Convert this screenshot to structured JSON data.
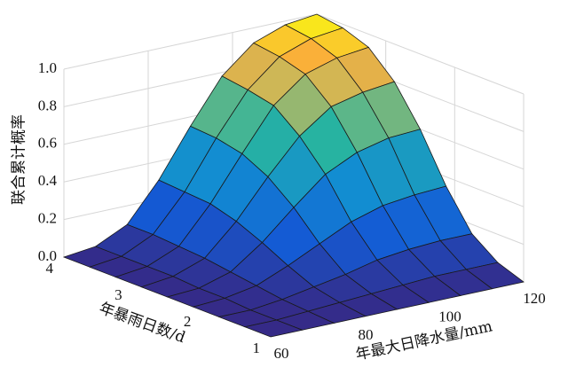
{
  "chart_data": {
    "type": "surface",
    "xlabel": "年最大日降水量/mm",
    "ylabel": "年暴雨日数/d",
    "zlabel": "联合累计概率",
    "x": [
      60,
      67.5,
      75,
      82.5,
      90,
      97.5,
      105,
      112.5,
      120
    ],
    "y": [
      1,
      1.375,
      1.75,
      2.125,
      2.5,
      2.875,
      3.25,
      3.625,
      4
    ],
    "z": [
      [
        0,
        0,
        0,
        0,
        0,
        0,
        0,
        0,
        0
      ],
      [
        0,
        0,
        0.01,
        0.02,
        0.03,
        0.04,
        0.05,
        0.05,
        0.05
      ],
      [
        0,
        0,
        0.02,
        0.05,
        0.08,
        0.12,
        0.14,
        0.15,
        0.15
      ],
      [
        0,
        0.01,
        0.04,
        0.11,
        0.19,
        0.27,
        0.32,
        0.34,
        0.35
      ],
      [
        0,
        0.01,
        0.06,
        0.18,
        0.33,
        0.47,
        0.55,
        0.59,
        0.6
      ],
      [
        0,
        0.02,
        0.08,
        0.24,
        0.44,
        0.62,
        0.74,
        0.78,
        0.8
      ],
      [
        0,
        0.02,
        0.09,
        0.28,
        0.51,
        0.73,
        0.86,
        0.91,
        0.93
      ],
      [
        0,
        0.02,
        0.1,
        0.29,
        0.54,
        0.76,
        0.9,
        0.96,
        0.98
      ],
      [
        0,
        0.02,
        0.1,
        0.3,
        0.55,
        0.78,
        0.92,
        0.98,
        1
      ]
    ],
    "xlim": [
      60,
      120
    ],
    "ylim": [
      1,
      4
    ],
    "zlim": [
      0,
      1
    ],
    "xticks": [
      60,
      80,
      100,
      120
    ],
    "yticks": [
      1,
      2,
      3,
      4
    ],
    "zticks": [
      {
        "value": 0,
        "label": "0.0"
      },
      0.2,
      0.4,
      0.6,
      0.8,
      {
        "value": 1,
        "label": "1.0"
      }
    ],
    "grid": true
  }
}
